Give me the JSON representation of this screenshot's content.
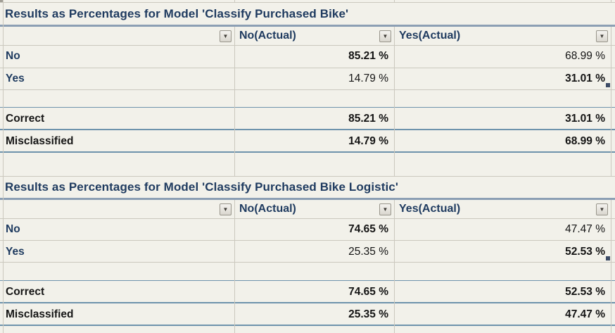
{
  "icons": {
    "filter_dropdown": "▼"
  },
  "colors": {
    "background": "#F2F1EA",
    "heading_text": "#1E3A5F",
    "value_text": "#141414",
    "gridline": "#CBC8BE",
    "table_border_blue": "#6E93AC",
    "title_underline": "#8C9FB4"
  },
  "tables": [
    {
      "title": "Results as Percentages for Model 'Classify Purchased Bike'",
      "columns": {
        "no_actual": "No(Actual)",
        "yes_actual": "Yes(Actual)"
      },
      "rows": {
        "no": {
          "label": "No",
          "no_actual": "85.21 %",
          "yes_actual": "68.99 %"
        },
        "yes": {
          "label": "Yes",
          "no_actual": "14.79 %",
          "yes_actual": "31.01 %"
        },
        "correct": {
          "label": "Correct",
          "no_actual": "85.21 %",
          "yes_actual": "31.01 %"
        },
        "misclassified": {
          "label": "Misclassified",
          "no_actual": "14.79 %",
          "yes_actual": "68.99 %"
        }
      }
    },
    {
      "title": "Results as Percentages for Model 'Classify Purchased Bike Logistic'",
      "columns": {
        "no_actual": "No(Actual)",
        "yes_actual": "Yes(Actual)"
      },
      "rows": {
        "no": {
          "label": "No",
          "no_actual": "74.65 %",
          "yes_actual": "47.47 %"
        },
        "yes": {
          "label": "Yes",
          "no_actual": "25.35 %",
          "yes_actual": "52.53 %"
        },
        "correct": {
          "label": "Correct",
          "no_actual": "74.65 %",
          "yes_actual": "52.53 %"
        },
        "misclassified": {
          "label": "Misclassified",
          "no_actual": "25.35 %",
          "yes_actual": "47.47 %"
        }
      }
    }
  ]
}
